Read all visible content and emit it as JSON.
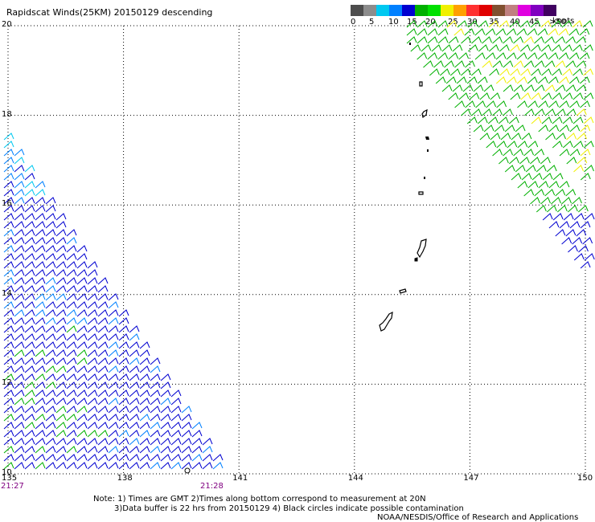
{
  "title": "Rapidscat Winds(25KM) 20150129 descending",
  "colorbar": {
    "labels": [
      "0",
      "5",
      "10",
      "15",
      "20",
      "25",
      "30",
      "35",
      "40",
      "45",
      ">50"
    ],
    "units": "knots",
    "colors": [
      "#4d4d4d",
      "#8c8c8c",
      "#00c8f0",
      "#0080ff",
      "#0000d0",
      "#00b000",
      "#00e000",
      "#f0f000",
      "#ffa000",
      "#ff3030",
      "#e00000",
      "#805030",
      "#c08080",
      "#e000e0",
      "#8000c0",
      "#400060"
    ]
  },
  "map": {
    "lat_labels": [
      "20",
      "18",
      "16",
      "14",
      "12",
      "10"
    ],
    "lon_labels": [
      "135",
      "138",
      "141",
      "144",
      "147",
      "150"
    ],
    "lat_range": [
      10,
      20
    ],
    "lon_range": [
      135,
      150
    ]
  },
  "times": {
    "start": "21:27",
    "end": "21:28"
  },
  "notes": {
    "line1": "Note: 1) Times are GMT 2)Times along bottom correspond to measurement at 20N",
    "line2": "3)Data buffer is 22 hrs from 20150129 4) Black circles indicate possible contamination",
    "credit": "NOAA/NESDIS/Office of Research and Applications"
  },
  "wind_swaths": [
    {
      "name": "west-swath",
      "dominant_speed_knots": "10-15",
      "colors": [
        "#0000d0",
        "#0080ff",
        "#00c8f0",
        "#00b000"
      ]
    },
    {
      "name": "east-swath",
      "dominant_speed_knots": "15-25",
      "colors": [
        "#00b000",
        "#f0f000",
        "#0000d0"
      ]
    }
  ]
}
